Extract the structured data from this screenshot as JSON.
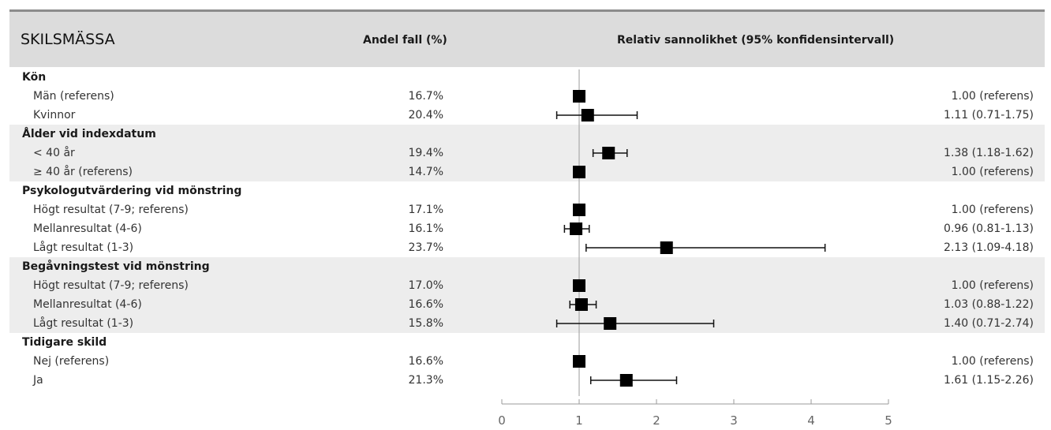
{
  "header": {
    "title": "SKILSMÄSSA",
    "col_share": "Andel fall (%)",
    "col_rr": "Relativ sannolikhet (95% konfidensintervall)"
  },
  "rows": [
    {
      "type": "section",
      "label": "Kön"
    },
    {
      "type": "item",
      "label": "Män (referens)",
      "pct": "16.7%",
      "ci_text": "1.00 (referens)",
      "est": 1.0,
      "lo": 1.0,
      "hi": 1.0
    },
    {
      "type": "item",
      "label": "Kvinnor",
      "pct": "20.4%",
      "ci_text": "1.11 (0.71-1.75)",
      "est": 1.11,
      "lo": 0.71,
      "hi": 1.75
    },
    {
      "type": "section",
      "label": "Ålder vid indexdatum"
    },
    {
      "type": "item",
      "label": "< 40 år",
      "pct": "19.4%",
      "ci_text": "1.38 (1.18-1.62)",
      "est": 1.38,
      "lo": 1.18,
      "hi": 1.62
    },
    {
      "type": "item",
      "label": "≥ 40 år (referens)",
      "pct": "14.7%",
      "ci_text": "1.00 (referens)",
      "est": 1.0,
      "lo": 1.0,
      "hi": 1.0
    },
    {
      "type": "section",
      "label": "Psykologutvärdering vid mönstring"
    },
    {
      "type": "item",
      "label": "Högt resultat (7-9; referens)",
      "pct": "17.1%",
      "ci_text": "1.00 (referens)",
      "est": 1.0,
      "lo": 1.0,
      "hi": 1.0
    },
    {
      "type": "item",
      "label": "Mellanresultat (4-6)",
      "pct": "16.1%",
      "ci_text": "0.96 (0.81-1.13)",
      "est": 0.96,
      "lo": 0.81,
      "hi": 1.13
    },
    {
      "type": "item",
      "label": "Lågt resultat (1-3)",
      "pct": "23.7%",
      "ci_text": "2.13 (1.09-4.18)",
      "est": 2.13,
      "lo": 1.09,
      "hi": 4.18
    },
    {
      "type": "section",
      "label": "Begåvningstest vid mönstring"
    },
    {
      "type": "item",
      "label": "Högt resultat (7-9; referens)",
      "pct": "17.0%",
      "ci_text": "1.00 (referens)",
      "est": 1.0,
      "lo": 1.0,
      "hi": 1.0
    },
    {
      "type": "item",
      "label": "Mellanresultat (4-6)",
      "pct": "16.6%",
      "ci_text": "1.03 (0.88-1.22)",
      "est": 1.03,
      "lo": 0.88,
      "hi": 1.22
    },
    {
      "type": "item",
      "label": "Lågt resultat (1-3)",
      "pct": "15.8%",
      "ci_text": "1.40 (0.71-2.74)",
      "est": 1.4,
      "lo": 0.71,
      "hi": 2.74
    },
    {
      "type": "section",
      "label": "Tidigare skild"
    },
    {
      "type": "item",
      "label": "Nej (referens)",
      "pct": "16.6%",
      "ci_text": "1.00 (referens)",
      "est": 1.0,
      "lo": 1.0,
      "hi": 1.0
    },
    {
      "type": "item",
      "label": "Ja",
      "pct": "21.3%",
      "ci_text": "1.61 (1.15-2.26)",
      "est": 1.61,
      "lo": 1.15,
      "hi": 2.26
    }
  ],
  "chart_data": {
    "type": "scatter",
    "subtype": "forest-plot",
    "title": "SKILSMÄSSA",
    "x_axis": {
      "min": 0,
      "max": 5,
      "ticks": [
        0,
        1,
        2,
        3,
        4,
        5
      ],
      "reference_line": 1
    },
    "grid": false,
    "series": [
      {
        "categories": [
          "Män (referens)",
          "Kvinnor",
          "< 40 år",
          "≥ 40 år (referens)",
          "Högt resultat (7-9; referens)",
          "Mellanresultat (4-6)",
          "Lågt resultat (1-3)",
          "Högt resultat (7-9; referens)",
          "Mellanresultat (4-6)",
          "Lågt resultat (1-3)",
          "Nej (referens)",
          "Ja"
        ],
        "estimate": [
          1.0,
          1.11,
          1.38,
          1.0,
          1.0,
          0.96,
          2.13,
          1.0,
          1.03,
          1.4,
          1.0,
          1.61
        ],
        "ci_low": [
          1.0,
          0.71,
          1.18,
          1.0,
          1.0,
          0.81,
          1.09,
          1.0,
          0.88,
          0.71,
          1.0,
          1.15
        ],
        "ci_high": [
          1.0,
          1.75,
          1.62,
          1.0,
          1.0,
          1.13,
          4.18,
          1.0,
          1.22,
          2.74,
          1.0,
          2.26
        ]
      }
    ]
  }
}
